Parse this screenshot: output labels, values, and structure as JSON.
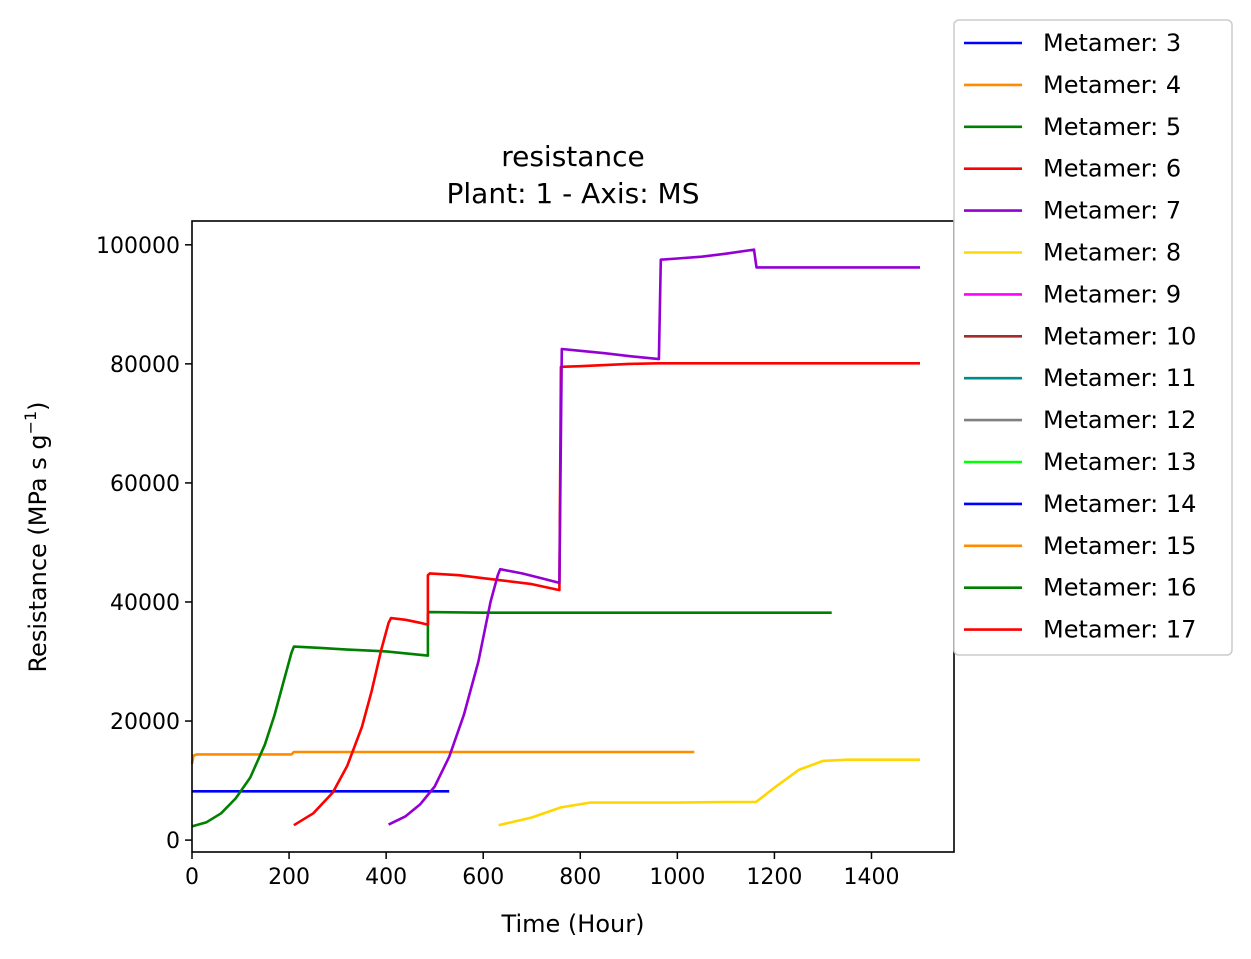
{
  "chart_data": {
    "type": "line",
    "title": "resistance",
    "subtitle": "Plant: 1 - Axis: MS",
    "xlabel": "Time (Hour)",
    "ylabel_main": "Resistance (MPa s g",
    "ylabel_exp": "−1",
    "ylabel_close": ")",
    "xlim": [
      0,
      1570
    ],
    "ylim": [
      -2000,
      104000
    ],
    "xticks": [
      0,
      200,
      400,
      600,
      800,
      1000,
      1200,
      1400
    ],
    "yticks": [
      0,
      20000,
      40000,
      60000,
      80000,
      100000
    ],
    "grid": false,
    "legend_position": "outside-right",
    "legend_labels": [
      "Metamer: 3",
      "Metamer: 4",
      "Metamer: 5",
      "Metamer: 6",
      "Metamer: 7",
      "Metamer: 8",
      "Metamer: 9",
      "Metamer: 10",
      "Metamer: 11",
      "Metamer: 12",
      "Metamer: 13",
      "Metamer: 14",
      "Metamer: 15",
      "Metamer: 16",
      "Metamer: 17"
    ],
    "legend_colors": [
      "#0000ff",
      "#ff8c00",
      "#008000",
      "#ff0000",
      "#9400d3",
      "#ffd700",
      "#ff00ff",
      "#a52a2a",
      "#008b8b",
      "#808080",
      "#00ff00",
      "#0000ff",
      "#ff8c00",
      "#008000",
      "#ff0000"
    ],
    "series": [
      {
        "color": "#0000ff",
        "x": [
          0,
          530
        ],
        "y": [
          8200,
          8200
        ]
      },
      {
        "color": "#ff8c00",
        "x": [
          0,
          3,
          10,
          200,
          205,
          210,
          400,
          600,
          800,
          1000,
          1035
        ],
        "y": [
          12800,
          14200,
          14400,
          14400,
          14400,
          14800,
          14800,
          14800,
          14800,
          14800,
          14800
        ]
      },
      {
        "color": "#008000",
        "x": [
          0,
          30,
          60,
          90,
          120,
          150,
          170,
          190,
          205,
          210,
          260,
          320,
          400,
          485,
          486,
          486,
          488,
          600,
          800,
          1000,
          1200,
          1318
        ],
        "y": [
          2300,
          3000,
          4500,
          7000,
          10500,
          16000,
          21000,
          27000,
          31500,
          32500,
          32300,
          32000,
          31700,
          31000,
          31000,
          38000,
          38300,
          38200,
          38200,
          38200,
          38200,
          38200
        ]
      },
      {
        "color": "#ff0000",
        "x": [
          210,
          250,
          290,
          320,
          350,
          370,
          390,
          405,
          410,
          440,
          470,
          485,
          486,
          486,
          490,
          550,
          600,
          650,
          700,
          757,
          757,
          760,
          800,
          850,
          900,
          960,
          1000,
          1200,
          1500
        ],
        "y": [
          2500,
          4500,
          8000,
          12500,
          19000,
          25000,
          32000,
          36500,
          37300,
          37000,
          36500,
          36200,
          36200,
          44500,
          44800,
          44500,
          44000,
          43500,
          43000,
          42000,
          42000,
          79500,
          79600,
          79800,
          80000,
          80100,
          80100,
          80100,
          80100
        ]
      },
      {
        "color": "#9400d3",
        "x": [
          405,
          440,
          470,
          500,
          530,
          560,
          590,
          615,
          630,
          635,
          680,
          720,
          757,
          757,
          762,
          800,
          850,
          900,
          962,
          962,
          966,
          1000,
          1050,
          1100,
          1158,
          1158,
          1163,
          1200,
          1300,
          1400,
          1500
        ],
        "y": [
          2600,
          4000,
          6000,
          9000,
          14000,
          21000,
          30000,
          40000,
          44500,
          45500,
          44800,
          44000,
          43200,
          43200,
          82500,
          82200,
          81800,
          81300,
          80800,
          80800,
          97500,
          97700,
          98000,
          98500,
          99200,
          99200,
          96200,
          96200,
          96200,
          96200,
          96200
        ]
      },
      {
        "color": "#ffd700",
        "x": [
          632,
          700,
          760,
          820,
          900,
          1000,
          1100,
          1162,
          1200,
          1250,
          1300,
          1350,
          1400,
          1500
        ],
        "y": [
          2500,
          3800,
          5500,
          6300,
          6300,
          6300,
          6400,
          6400,
          8800,
          11800,
          13300,
          13500,
          13500,
          13500
        ]
      }
    ]
  }
}
